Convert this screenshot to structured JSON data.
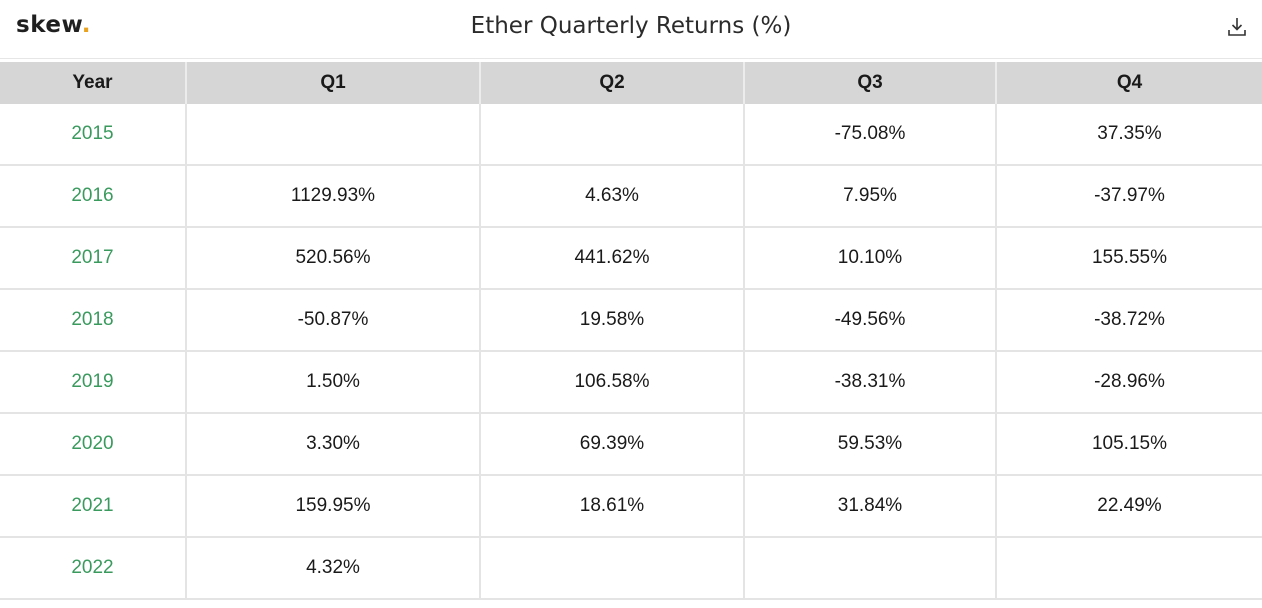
{
  "header": {
    "logo_text": "skew",
    "logo_dot": ".",
    "title": "Ether Quarterly Returns (%)",
    "download_icon": "download-icon"
  },
  "colors": {
    "year_text": "#3a9a5e",
    "header_bg": "#d6d6d6",
    "logo_dot": "#e8a21f"
  },
  "chart_data": {
    "type": "table",
    "title": "Ether Quarterly Returns (%)",
    "columns": [
      "Year",
      "Q1",
      "Q2",
      "Q3",
      "Q4"
    ],
    "rows": [
      [
        "2015",
        "",
        "",
        "-75.08%",
        "37.35%"
      ],
      [
        "2016",
        "1129.93%",
        "4.63%",
        "7.95%",
        "-37.97%"
      ],
      [
        "2017",
        "520.56%",
        "441.62%",
        "10.10%",
        "155.55%"
      ],
      [
        "2018",
        "-50.87%",
        "19.58%",
        "-49.56%",
        "-38.72%"
      ],
      [
        "2019",
        "1.50%",
        "106.58%",
        "-38.31%",
        "-28.96%"
      ],
      [
        "2020",
        "3.30%",
        "69.39%",
        "59.53%",
        "105.15%"
      ],
      [
        "2021",
        "159.95%",
        "18.61%",
        "31.84%",
        "22.49%"
      ],
      [
        "2022",
        "4.32%",
        "",
        "",
        ""
      ]
    ]
  }
}
